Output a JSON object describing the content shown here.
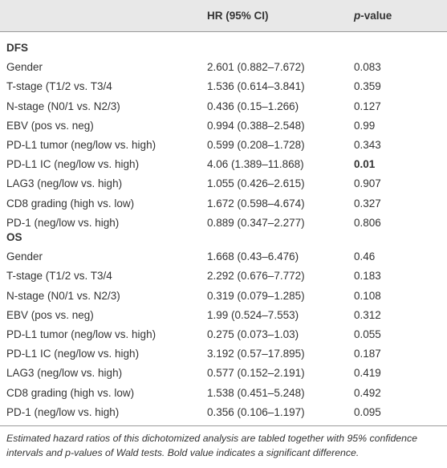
{
  "table": {
    "header": {
      "hr": "HR (95% CI)",
      "p_italic": "p",
      "p_rest": "-value"
    },
    "sections": [
      {
        "label": "DFS",
        "rows": [
          [
            "Gender",
            "2.601 (0.882–7.672)",
            "0.083"
          ],
          [
            "T-stage (T1/2 vs. T3/4",
            "1.536 (0.614–3.841)",
            "0.359"
          ],
          [
            "N-stage (N0/1 vs. N2/3)",
            "0.436 (0.15–1.266)",
            "0.127"
          ],
          [
            "EBV (pos vs. neg)",
            "0.994 (0.388–2.548)",
            "0.99"
          ],
          [
            "PD-L1 tumor (neg/low vs. high)",
            "0.599 (0.208–1.728)",
            "0.343"
          ],
          [
            "PD-L1 IC (neg/low vs. high)",
            "4.06 (1.389–11.868)",
            "0.01"
          ],
          [
            "LAG3 (neg/low vs. high)",
            "1.055 (0.426–2.615)",
            "0.907"
          ],
          [
            "CD8 grading (high vs. low)",
            "1.672 (0.598–4.674)",
            "0.327"
          ],
          [
            "PD-1 (neg/low vs. high)",
            "0.889 (0.347–2.277)",
            "0.806"
          ]
        ]
      },
      {
        "label": "OS",
        "rows": [
          [
            "Gender",
            "1.668 (0.43–6.476)",
            "0.46"
          ],
          [
            "T-stage (T1/2 vs. T3/4",
            "2.292 (0.676–7.772)",
            "0.183"
          ],
          [
            "N-stage (N0/1 vs. N2/3)",
            "0.319 (0.079–1.285)",
            "0.108"
          ],
          [
            "EBV (pos vs. neg)",
            "1.99 (0.524–7.553)",
            "0.312"
          ],
          [
            "PD-L1 tumor (neg/low vs. high)",
            "0.275 (0.073–1.03)",
            "0.055"
          ],
          [
            "PD-L1 IC (neg/low vs. high)",
            "3.192 (0.57–17.895)",
            "0.187"
          ],
          [
            "LAG3 (neg/low vs. high)",
            "0.577 (0.152–2.191)",
            "0.419"
          ],
          [
            "CD8 grading (high vs. low)",
            "1.538 (0.451–5.248)",
            "0.492"
          ],
          [
            "PD-1 (neg/low vs. high)",
            "0.356 (0.106–1.197)",
            "0.095"
          ]
        ]
      }
    ],
    "caption": "Estimated hazard ratios of this dichotomized analysis are tabled together with 95% confidence intervals and p-values of Wald tests. Bold value indicates a significant difference."
  }
}
